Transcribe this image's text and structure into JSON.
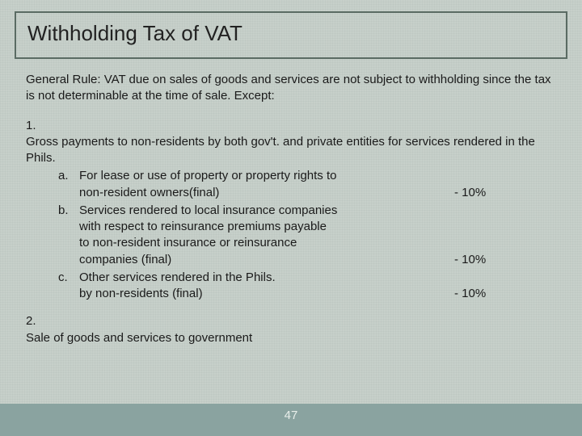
{
  "colors": {
    "background": "#c7d0ca",
    "title_border": "#5a6b63",
    "bottom_strip": "#8aa3a0",
    "page_number": "#e8eeea",
    "text": "#1a1a1a"
  },
  "typography": {
    "title_fontsize": 26,
    "body_fontsize": 15,
    "font_family": "Arial"
  },
  "title": "Withholding Tax of VAT",
  "general_rule": "General Rule:  VAT due on sales of goods and services are not subject to withholding since the tax is not determinable at the time of sale.  Except:",
  "items": [
    {
      "num": "1.",
      "lead": "Gross payments to non-residents by both gov't. and private entities for services rendered in the Phils.",
      "sub": [
        {
          "letter": "a.",
          "lines": [
            "For lease or use of property or property rights to",
            " non-resident owners(final)"
          ],
          "percent": "- 10%"
        },
        {
          "letter": "b.",
          "lines": [
            "Services rendered to local insurance companies",
            "with respect to reinsurance premiums payable",
            "to non-resident insurance or reinsurance",
            "companies (final)"
          ],
          "percent": "- 10%"
        },
        {
          "letter": "c.",
          "lines": [
            "Other services rendered in the Phils.",
            "by non-residents (final)"
          ],
          "percent": "- 10%"
        }
      ]
    },
    {
      "num": "2.",
      "lead": "Sale of goods and services to government"
    }
  ],
  "page_number": "47"
}
